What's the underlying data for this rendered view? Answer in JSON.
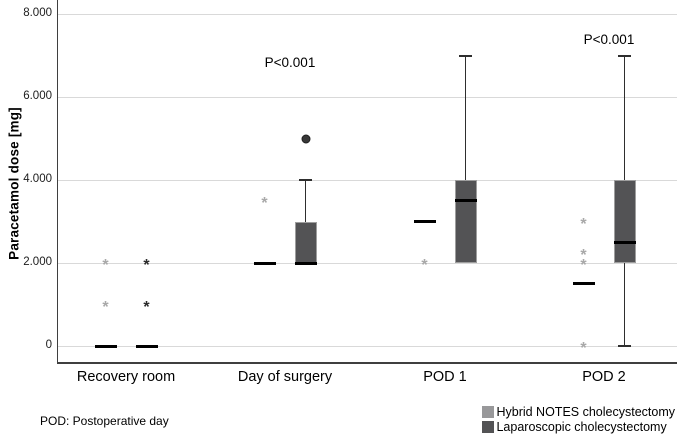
{
  "chart_data": {
    "type": "boxplot",
    "title": "",
    "ylabel": "Paracetamol dose [mg]",
    "xlabel": "",
    "ylim": [
      0,
      8400
    ],
    "grid": "horizontal",
    "yticks": [
      {
        "value": 0,
        "label": "0"
      },
      {
        "value": 2000,
        "label": "2.000"
      },
      {
        "value": 4000,
        "label": "4.000"
      },
      {
        "value": 6000,
        "label": "6.000"
      },
      {
        "value": 8000,
        "label": "8.000"
      }
    ],
    "categories": [
      "Recovery room",
      "Day of surgery",
      "POD 1",
      "POD 2"
    ],
    "series": [
      {
        "name": "Hybrid NOTES cholecystectomy",
        "color": "#98989a",
        "outlier_color": "#a9a9a9",
        "boxes": [
          {
            "category": "Recovery room",
            "median": 0,
            "asterisk_outliers": [
              1000,
              2000
            ]
          },
          {
            "category": "Day of surgery",
            "median": 2000,
            "asterisk_outliers": [
              3500
            ]
          },
          {
            "category": "POD 1",
            "median": 3000,
            "asterisk_outliers": [
              2000
            ]
          },
          {
            "category": "POD 2",
            "median": 1500,
            "asterisk_outliers": [
              0,
              2000,
              2250,
              3000
            ]
          }
        ]
      },
      {
        "name": "Laparoscopic cholecystectomy",
        "color": "#535355",
        "outlier_color": "#2b2b2b",
        "boxes": [
          {
            "category": "Recovery room",
            "median": 0,
            "asterisk_outliers": [
              1000,
              2000
            ]
          },
          {
            "category": "Day of surgery",
            "q1": 2000,
            "median": 2000,
            "q3": 3000,
            "whisker_high": 4000,
            "circle_outliers": [
              5000
            ]
          },
          {
            "category": "POD 1",
            "q1": 2000,
            "median": 3500,
            "q3": 4000,
            "whisker_high": 7000
          },
          {
            "category": "POD 2",
            "q1": 2000,
            "median": 2500,
            "q3": 4000,
            "whisker_low": 0,
            "whisker_high": 7000
          }
        ]
      }
    ],
    "annotations": [
      {
        "text": "P<0.001",
        "category": "Day of surgery",
        "y": 6800
      },
      {
        "text": "P<0.001",
        "category": "POD 2",
        "y": 7350
      }
    ],
    "legend": {
      "position": "bottom-right",
      "items": [
        {
          "label": "Hybrid NOTES cholecystectomy",
          "color": "#98989a"
        },
        {
          "label": "Laparoscopic cholecystectomy",
          "color": "#535355"
        }
      ]
    },
    "footnote": "POD: Postoperative day"
  }
}
